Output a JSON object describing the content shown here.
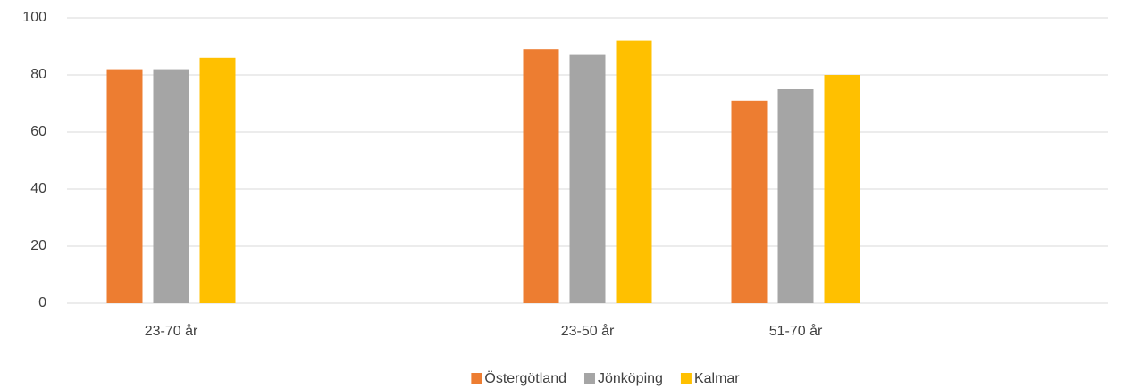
{
  "chart_data": {
    "type": "bar",
    "categories": [
      "23-70 år",
      null,
      "23-50 år",
      "51-70 år",
      null
    ],
    "series": [
      {
        "name": "Östergötland",
        "color": "#ed7d31",
        "values": [
          82,
          null,
          89,
          71,
          null
        ]
      },
      {
        "name": "Jönköping",
        "color": "#a5a5a5",
        "values": [
          82,
          null,
          87,
          75,
          null
        ]
      },
      {
        "name": "Kalmar",
        "color": "#ffc000",
        "values": [
          86,
          null,
          92,
          80,
          null
        ]
      }
    ],
    "ylim": [
      0,
      100
    ],
    "yticks": [
      0,
      20,
      40,
      60,
      80,
      100
    ],
    "grid": true,
    "legend": "bottom"
  }
}
